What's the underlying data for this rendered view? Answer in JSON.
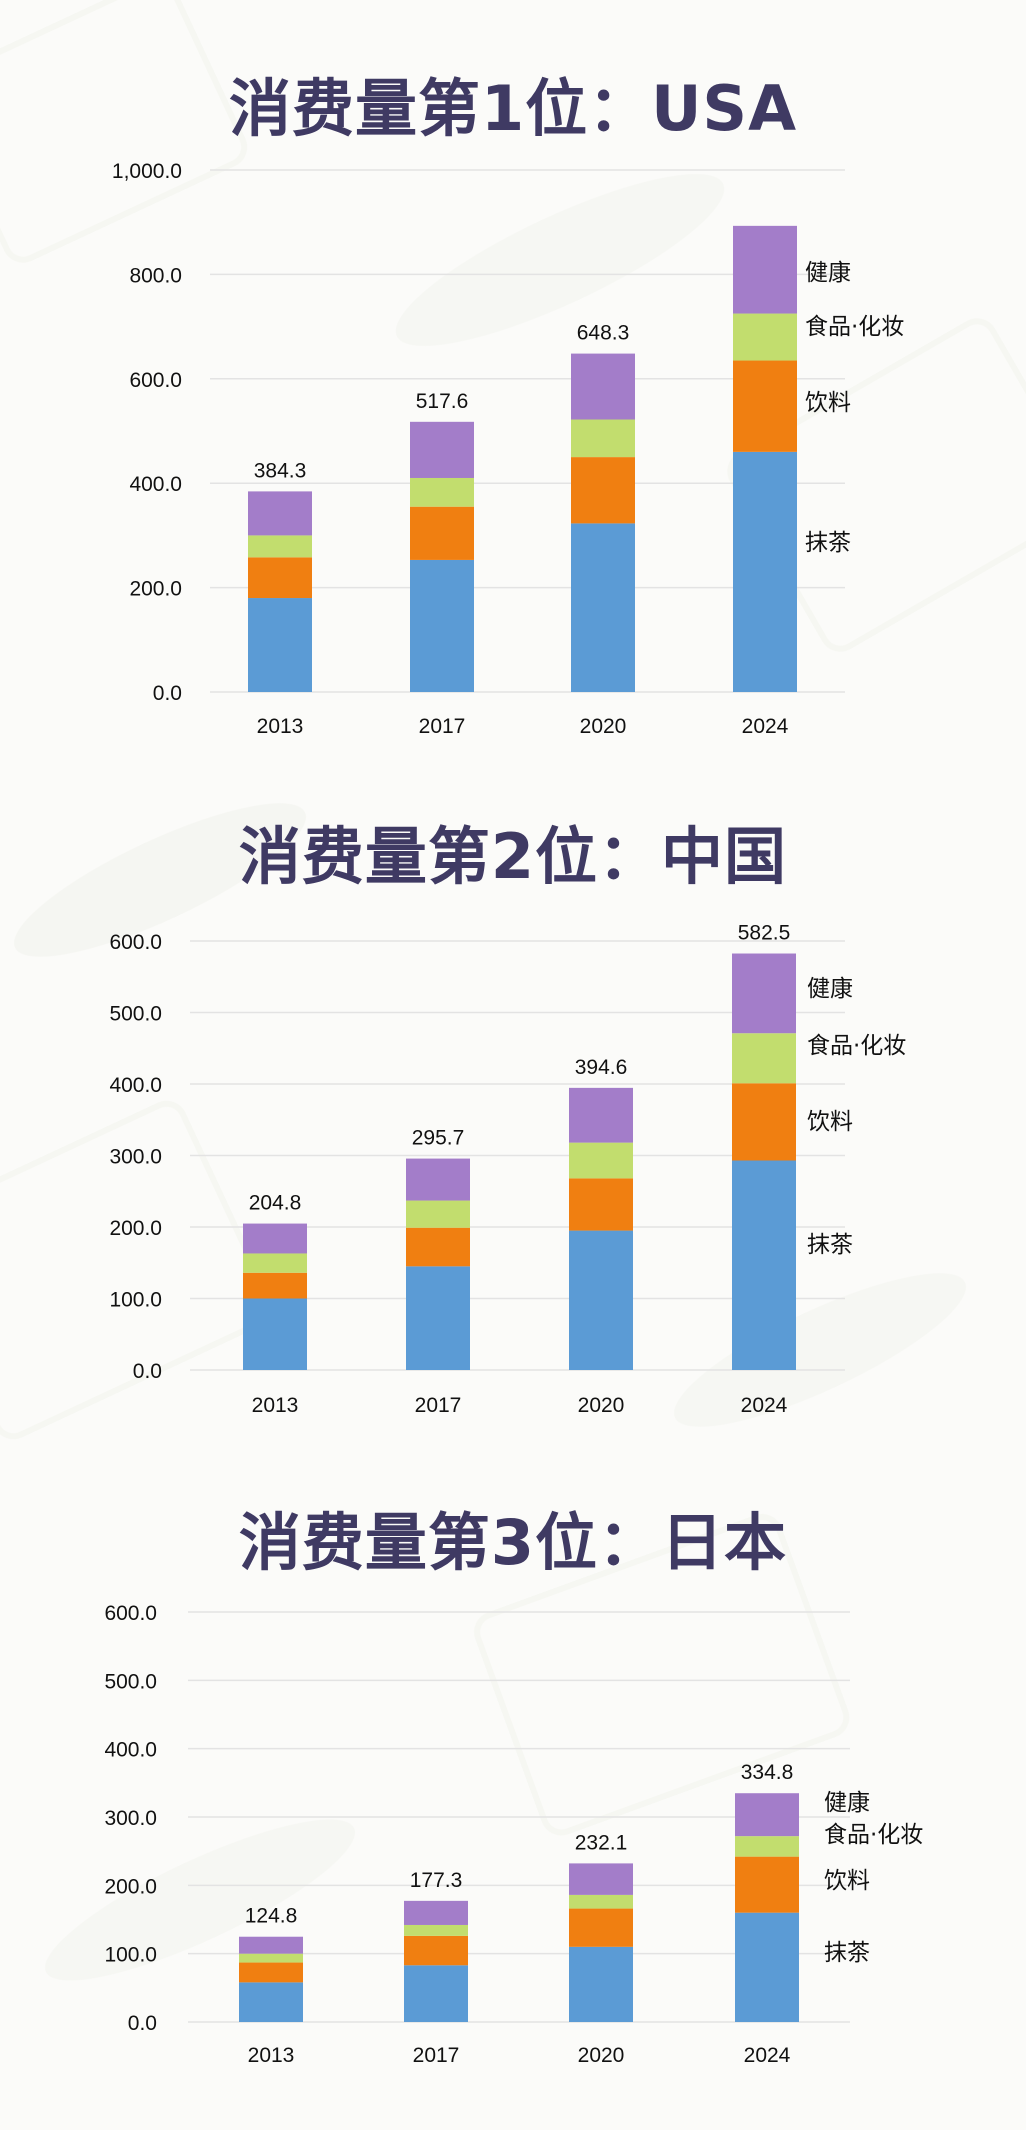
{
  "colors": {
    "matcha": "#5b9bd5",
    "drinks": "#f07f11",
    "food_cosmetics": "#c2dd6e",
    "health": "#a37dc9",
    "title": "#3f3a63"
  },
  "chart_data": [
    {
      "type": "bar",
      "stacked": true,
      "title": "消费量第1位：USA",
      "categories": [
        "2013",
        "2017",
        "2020",
        "2024"
      ],
      "series": [
        {
          "name": "抹茶",
          "values": [
            180,
            253,
            323,
            460
          ]
        },
        {
          "name": "饮料",
          "values": [
            78,
            102,
            127,
            175
          ]
        },
        {
          "name": "食品·化妆",
          "values": [
            42,
            55,
            72,
            90
          ]
        },
        {
          "name": "健康",
          "values": [
            84.3,
            107.6,
            126.3,
            168
          ]
        }
      ],
      "totals": [
        "384.3",
        "517.6",
        "648.3",
        ""
      ],
      "ylim": [
        0,
        1000
      ],
      "yticks": [
        "0.0",
        "200.0",
        "400.0",
        "600.0",
        "800.0",
        "1,000.0"
      ],
      "ytick_values": [
        0,
        200,
        400,
        600,
        800,
        1000
      ],
      "grid": true,
      "legend": "right of last bar"
    },
    {
      "type": "bar",
      "stacked": true,
      "title": "消费量第2位：中国",
      "categories": [
        "2013",
        "2017",
        "2020",
        "2024"
      ],
      "series": [
        {
          "name": "抹茶",
          "values": [
            100,
            145,
            195,
            293
          ]
        },
        {
          "name": "饮料",
          "values": [
            36,
            54,
            73,
            108
          ]
        },
        {
          "name": "食品·化妆",
          "values": [
            27,
            38,
            50,
            70
          ]
        },
        {
          "name": "健康",
          "values": [
            41.8,
            58.7,
            76.6,
            111.5
          ]
        }
      ],
      "totals": [
        "204.8",
        "295.7",
        "394.6",
        "582.5"
      ],
      "ylim": [
        0,
        600
      ],
      "yticks": [
        "0.0",
        "100.0",
        "200.0",
        "300.0",
        "400.0",
        "500.0",
        "600.0"
      ],
      "ytick_values": [
        0,
        100,
        200,
        300,
        400,
        500,
        600
      ],
      "grid": true,
      "legend": "right of last bar"
    },
    {
      "type": "bar",
      "stacked": true,
      "title": "消费量第3位：日本",
      "categories": [
        "2013",
        "2017",
        "2020",
        "2024"
      ],
      "series": [
        {
          "name": "抹茶",
          "values": [
            58,
            83,
            110,
            160
          ]
        },
        {
          "name": "饮料",
          "values": [
            29,
            43,
            56,
            82
          ]
        },
        {
          "name": "食品·化妆",
          "values": [
            13,
            16,
            20,
            30
          ]
        },
        {
          "name": "健康",
          "values": [
            24.8,
            35.3,
            46.1,
            62.8
          ]
        }
      ],
      "totals": [
        "124.8",
        "177.3",
        "232.1",
        "334.8"
      ],
      "ylim": [
        0,
        600
      ],
      "yticks": [
        "0.0",
        "100.0",
        "200.0",
        "300.0",
        "400.0",
        "500.0",
        "600.0"
      ],
      "ytick_values": [
        0,
        100,
        200,
        300,
        400,
        500,
        600
      ],
      "grid": true,
      "legend": "right of last bar"
    }
  ]
}
